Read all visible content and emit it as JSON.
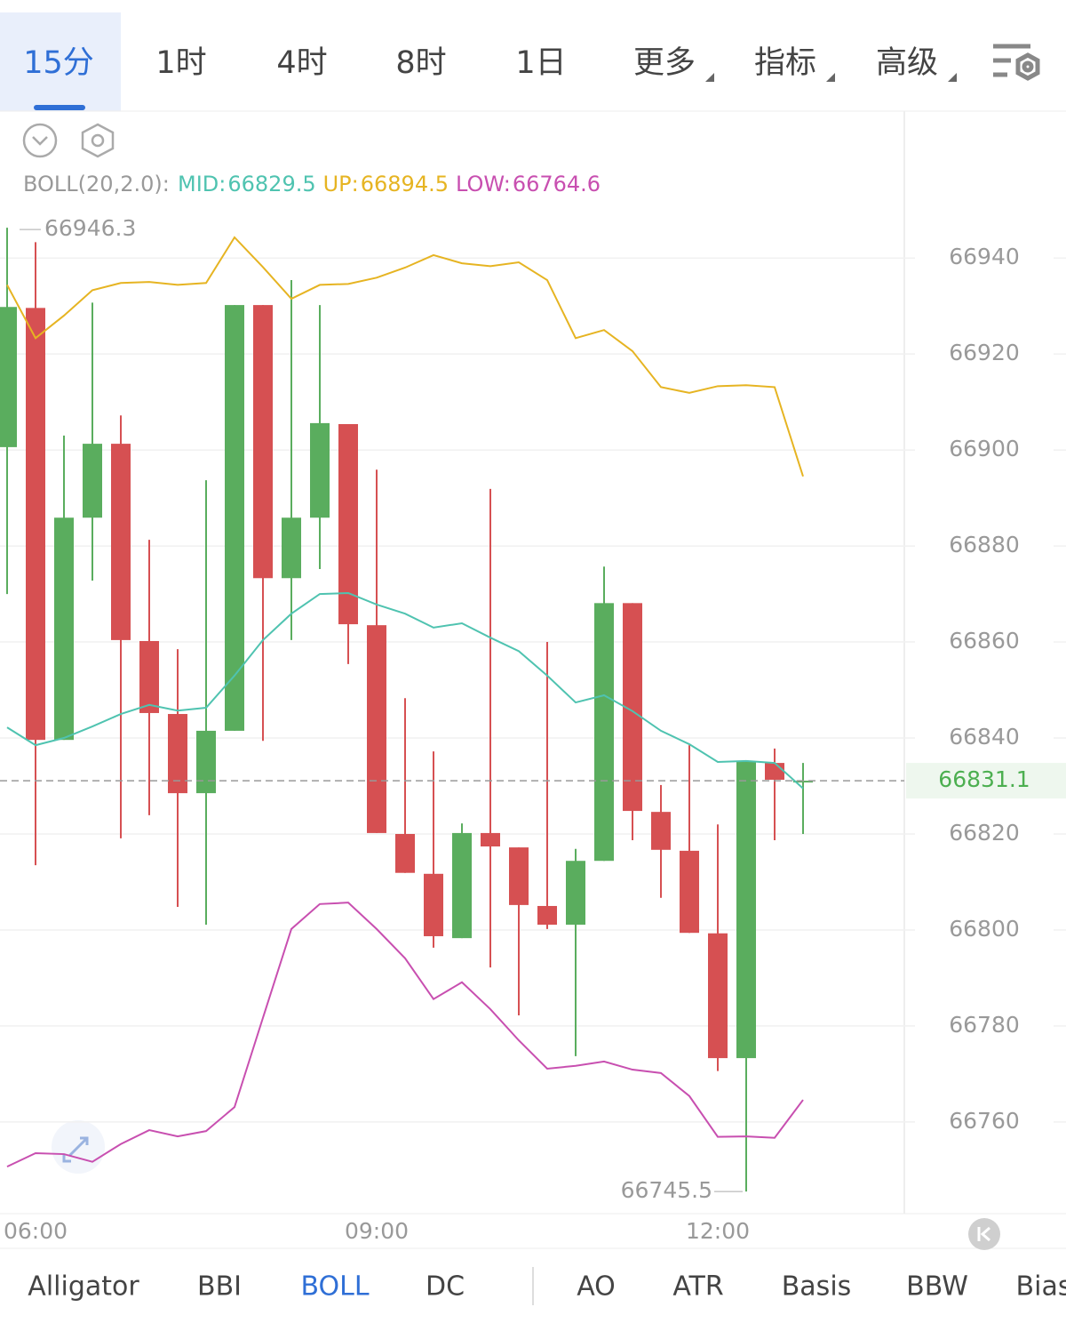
{
  "tabs": [
    "15分",
    "1时",
    "4时",
    "8时",
    "1日",
    "更多",
    "指标",
    "高级"
  ],
  "indicator_tabs": [
    "Alligator",
    "BBI",
    "BOLL",
    "DC",
    "AO",
    "ATR",
    "Basis",
    "BBW",
    "Bias"
  ],
  "chart_data": {
    "type": "candlestick",
    "indicator_label": "BOLL(20,2.0):",
    "categories": [
      null,
      "06:00",
      null,
      null,
      null,
      null,
      null,
      null,
      null,
      null,
      null,
      null,
      null,
      "09:00",
      null,
      null,
      null,
      null,
      null,
      null,
      null,
      null,
      null,
      null,
      null,
      "12:00",
      null,
      null,
      null
    ],
    "open": [
      66900.6,
      66929.6,
      66839.6,
      66885.9,
      66901.3,
      66860.2,
      66845.0,
      66828.5,
      66841.5,
      66930.2,
      66873.3,
      66885.9,
      66905.4,
      66863.5,
      66820.0,
      66811.7,
      66798.3,
      66820.2,
      66817.2,
      66805.0,
      66801.1,
      66814.4,
      66868.1,
      66824.6,
      66816.5,
      66799.3,
      66773.3,
      66834.8,
      66831.0
    ],
    "high": [
      66946.3,
      66943.3,
      66903.0,
      66930.7,
      66907.2,
      66881.3,
      66858.5,
      66893.7,
      66930.2,
      66930.2,
      66935.4,
      66930.2,
      66905.4,
      66895.9,
      66848.3,
      66837.2,
      66822.2,
      66891.9,
      66817.2,
      66860.0,
      66816.9,
      66875.7,
      66868.1,
      66830.2,
      66838.5,
      66822.0,
      66835.0,
      66837.8,
      66834.8
    ],
    "low": [
      66870.0,
      66813.5,
      66839.6,
      66872.8,
      66819.1,
      66823.9,
      66804.8,
      66801.1,
      66841.5,
      66839.4,
      66860.4,
      66875.2,
      66855.4,
      66820.2,
      66811.9,
      66796.3,
      66798.3,
      66792.2,
      66782.2,
      66800.2,
      66773.7,
      66814.4,
      66818.7,
      66806.7,
      66799.4,
      66770.6,
      66745.5,
      66818.7,
      66820.0
    ],
    "close": [
      66929.8,
      66839.6,
      66885.9,
      66901.3,
      66860.4,
      66845.2,
      66828.5,
      66841.5,
      66930.2,
      66873.3,
      66885.9,
      66905.6,
      66863.7,
      66820.2,
      66811.9,
      66798.7,
      66820.2,
      66817.4,
      66805.2,
      66801.1,
      66814.4,
      66868.1,
      66824.8,
      66816.7,
      66799.4,
      66773.3,
      66835.0,
      66831.3,
      66831.1
    ],
    "up_color": "#5aad5e",
    "down_color": "#d65052",
    "series": [
      {
        "name": "MID:",
        "color": "#4fc3b0",
        "values": [
          66842.2,
          66838.5,
          66840.0,
          66842.4,
          66845.0,
          66846.9,
          66845.7,
          66846.3,
          66853.0,
          66860.4,
          66865.9,
          66870.0,
          66870.2,
          66867.8,
          66865.9,
          66863.0,
          66863.9,
          66860.9,
          66858.1,
          66853.0,
          66847.4,
          66848.9,
          66845.6,
          66841.5,
          66838.7,
          66835.0,
          66835.2,
          66834.8,
          66829.5
        ]
      },
      {
        "name": "UP:",
        "color": "#e6b422",
        "values": [
          66934.4,
          66923.3,
          66928.0,
          66933.3,
          66934.8,
          66935.0,
          66934.4,
          66934.8,
          66944.3,
          66938.1,
          66931.5,
          66934.4,
          66934.6,
          66935.9,
          66938.0,
          66940.6,
          66938.9,
          66938.3,
          66939.1,
          66935.4,
          66923.3,
          66925.0,
          66920.6,
          66913.1,
          66911.9,
          66913.3,
          66913.5,
          66913.1,
          66894.5
        ]
      },
      {
        "name": "LOW:",
        "color": "#c84fb0",
        "values": [
          66750.7,
          66753.5,
          66753.3,
          66751.7,
          66755.4,
          66758.3,
          66757.0,
          66758.1,
          66763.1,
          66781.7,
          66800.2,
          66805.4,
          66805.7,
          66800.2,
          66794.1,
          66785.6,
          66789.1,
          66783.5,
          66777.0,
          66771.1,
          66771.7,
          66772.6,
          66770.9,
          66770.2,
          66765.4,
          66756.9,
          66757.0,
          66756.7,
          66764.6
        ]
      }
    ],
    "ylim": [
      66740.9,
      66970.6
    ],
    "yticks": [
      66760,
      66780,
      66800,
      66820,
      66840,
      66860,
      66880,
      66900,
      66920,
      66940
    ],
    "grid": true
  }
}
